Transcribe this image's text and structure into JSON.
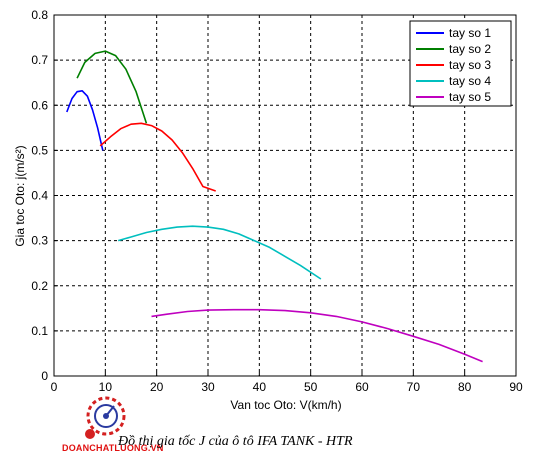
{
  "chart_data": {
    "type": "line",
    "xlabel": "Van toc Oto: V(km/h)",
    "ylabel": "Gia toc Oto: j(m/s²)",
    "xlim": [
      0,
      90
    ],
    "ylim": [
      0,
      0.8
    ],
    "xticks": [
      "0",
      "10",
      "20",
      "30",
      "40",
      "50",
      "60",
      "70",
      "80",
      "90"
    ],
    "yticks": [
      "0",
      "0.1",
      "0.2",
      "0.3",
      "0.4",
      "0.5",
      "0.6",
      "0.7",
      "0.8"
    ],
    "grid": true,
    "legend_position": "top-right",
    "series": [
      {
        "name": "tay so 1",
        "color": "#0000ff",
        "x": [
          2.5,
          3.5,
          4.5,
          5.5,
          6.5,
          7.5,
          8.5,
          9.5
        ],
        "y": [
          0.585,
          0.615,
          0.63,
          0.632,
          0.62,
          0.59,
          0.55,
          0.5
        ]
      },
      {
        "name": "tay so 2",
        "color": "#007f00",
        "x": [
          4.5,
          6,
          8,
          10,
          12,
          14,
          16,
          18
        ],
        "y": [
          0.66,
          0.695,
          0.715,
          0.72,
          0.71,
          0.68,
          0.63,
          0.56
        ]
      },
      {
        "name": "tay so 3",
        "color": "#ff0000",
        "x": [
          9,
          11,
          13,
          15,
          17,
          19,
          21,
          23,
          25,
          27,
          29,
          31.5
        ],
        "y": [
          0.51,
          0.53,
          0.548,
          0.558,
          0.56,
          0.555,
          0.543,
          0.523,
          0.495,
          0.46,
          0.42,
          0.41
        ]
      },
      {
        "name": "tay so 4",
        "color": "#00bfbf",
        "x": [
          12.5,
          15,
          18,
          21,
          24,
          27,
          30,
          33,
          36,
          39,
          42,
          45,
          48,
          52
        ],
        "y": [
          0.3,
          0.308,
          0.318,
          0.325,
          0.33,
          0.332,
          0.33,
          0.325,
          0.315,
          0.3,
          0.285,
          0.265,
          0.245,
          0.215
        ]
      },
      {
        "name": "tay so 5",
        "color": "#bf00bf",
        "x": [
          19,
          22,
          26,
          30,
          35,
          40,
          45,
          50,
          55,
          60,
          65,
          70,
          75,
          80,
          83.5
        ],
        "y": [
          0.132,
          0.137,
          0.143,
          0.146,
          0.147,
          0.147,
          0.145,
          0.14,
          0.132,
          0.12,
          0.105,
          0.088,
          0.07,
          0.048,
          0.032
        ]
      }
    ]
  },
  "caption": "Đồ thị gia tốc J của ô tô IFA TANK - HTR",
  "logo_text": "DOANCHATLUONG.VN"
}
